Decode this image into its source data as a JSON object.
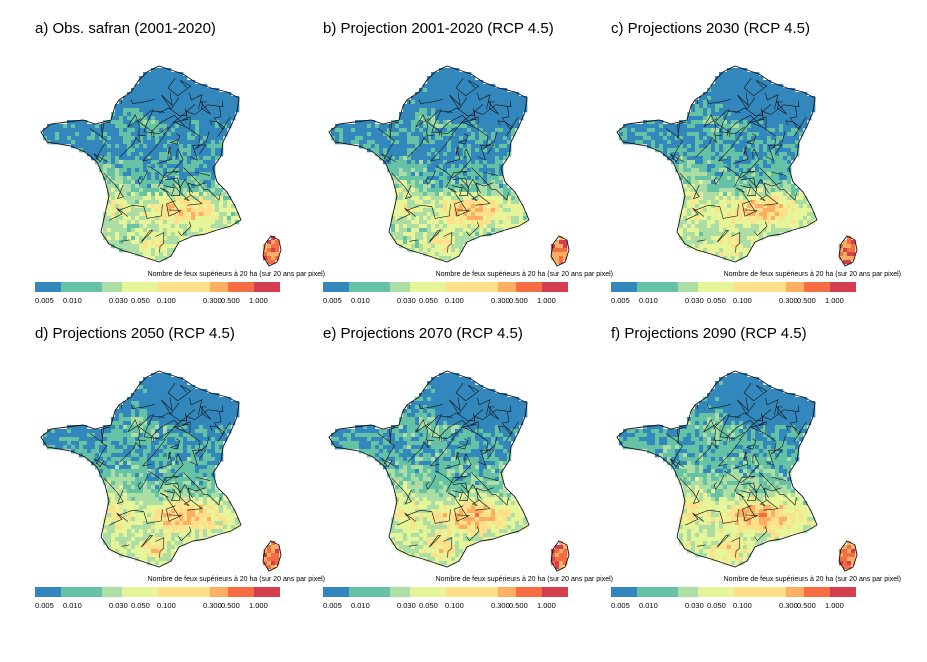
{
  "figure": {
    "legend_title": "Nombre de feux supérieurs à 20 ha (sur 20 ans par pixel)",
    "tick_labels": [
      "0.005",
      "0.010",
      "0.030",
      "0.050",
      "0.100",
      "0.300",
      "0.500",
      "1.000"
    ],
    "colors": {
      "c1": "#3288bd",
      "c2": "#66c2a5",
      "c3": "#abdda4",
      "c4": "#e6f598",
      "c5": "#fee08b",
      "c6": "#fdae61",
      "c7": "#f46d43",
      "c8": "#d53e4f"
    },
    "panels": [
      {
        "title": "a) Obs. safran (2001-2020)"
      },
      {
        "title": "b) Projection 2001-2020 (RCP 4.5)"
      },
      {
        "title": "c) Projections 2030 (RCP 4.5)"
      },
      {
        "title": "d) Projections 2050 (RCP 4.5)"
      },
      {
        "title": "e) Projections 2070 (RCP 4.5)"
      },
      {
        "title": "f) Projections 2090  (RCP 4.5)"
      }
    ]
  }
}
